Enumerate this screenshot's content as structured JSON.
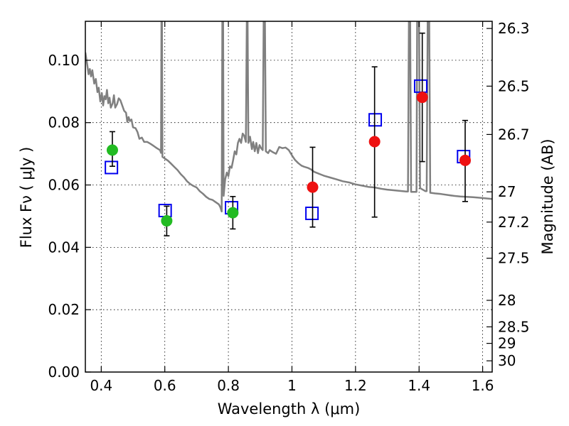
{
  "chart_data": {
    "type": "scatter",
    "xlabel": "Wavelength  λ (μm)",
    "ylabel": "Flux  Fν  ( μJy )",
    "y2label": "Magnitude (AB)",
    "xlim": [
      0.35,
      1.63
    ],
    "ylim": [
      0.0,
      0.1125
    ],
    "x_ticks": [
      0.4,
      0.6,
      0.8,
      1.0,
      1.2,
      1.4,
      1.6
    ],
    "x_tick_labels": [
      "0.4",
      "0.6",
      "0.8",
      "1",
      "1.2",
      "1.4",
      "1.6"
    ],
    "y_ticks": [
      0.0,
      0.02,
      0.04,
      0.06,
      0.08,
      0.1
    ],
    "y_tick_labels": [
      "0.00",
      "0.02",
      "0.04",
      "0.06",
      "0.08",
      "0.10"
    ],
    "y2_ticks": [
      {
        "label": "26.3",
        "flux": 0.1102
      },
      {
        "label": "26.5",
        "flux": 0.0917
      },
      {
        "label": "26.7",
        "flux": 0.0762
      },
      {
        "label": "27",
        "flux": 0.0578
      },
      {
        "label": "27.2",
        "flux": 0.0481
      },
      {
        "label": "27.5",
        "flux": 0.0365
      },
      {
        "label": "28",
        "flux": 0.023
      },
      {
        "label": "28.5",
        "flux": 0.0145
      },
      {
        "label": "29",
        "flux": 0.0092
      },
      {
        "label": "30",
        "flux": 0.0036
      }
    ],
    "grid": true,
    "series": [
      {
        "marker": "circle",
        "color": "#22bb22",
        "points": [
          {
            "x": 0.435,
            "y": 0.0712,
            "yerr_low": 0.066,
            "yerr_high": 0.0771
          },
          {
            "x": 0.606,
            "y": 0.0485,
            "yerr_low": 0.0437,
            "yerr_high": 0.0532
          },
          {
            "x": 0.814,
            "y": 0.0511,
            "yerr_low": 0.0459,
            "yerr_high": 0.0563
          }
        ]
      },
      {
        "marker": "circle",
        "color": "#ee1111",
        "points": [
          {
            "x": 1.065,
            "y": 0.0593,
            "yerr_low": 0.0465,
            "yerr_high": 0.0721
          },
          {
            "x": 1.26,
            "y": 0.0739,
            "yerr_low": 0.0497,
            "yerr_high": 0.0979
          },
          {
            "x": 1.41,
            "y": 0.0881,
            "yerr_low": 0.0675,
            "yerr_high": 0.1087
          },
          {
            "x": 1.545,
            "y": 0.0679,
            "yerr_low": 0.0547,
            "yerr_high": 0.0807
          }
        ]
      },
      {
        "marker": "square",
        "color": "#0000ee",
        "points": [
          {
            "x": 0.432,
            "y": 0.0656
          },
          {
            "x": 0.601,
            "y": 0.0518
          },
          {
            "x": 0.81,
            "y": 0.0527
          },
          {
            "x": 1.063,
            "y": 0.0509
          },
          {
            "x": 1.262,
            "y": 0.0809
          },
          {
            "x": 1.405,
            "y": 0.0917
          },
          {
            "x": 1.54,
            "y": 0.0691
          }
        ]
      },
      {
        "type": "line",
        "color": "#808080",
        "points": [
          [
            0.35,
            0.1025
          ],
          [
            0.356,
            0.0985
          ],
          [
            0.36,
            0.0955
          ],
          [
            0.364,
            0.0972
          ],
          [
            0.368,
            0.0948
          ],
          [
            0.372,
            0.0968
          ],
          [
            0.378,
            0.0925
          ],
          [
            0.383,
            0.094
          ],
          [
            0.388,
            0.0898
          ],
          [
            0.392,
            0.0912
          ],
          [
            0.397,
            0.0868
          ],
          [
            0.402,
            0.0895
          ],
          [
            0.406,
            0.0855
          ],
          [
            0.41,
            0.0885
          ],
          [
            0.414,
            0.0875
          ],
          [
            0.418,
            0.0905
          ],
          [
            0.422,
            0.0862
          ],
          [
            0.426,
            0.088
          ],
          [
            0.43,
            0.0848
          ],
          [
            0.436,
            0.0862
          ],
          [
            0.44,
            0.0888
          ],
          [
            0.444,
            0.0848
          ],
          [
            0.45,
            0.086
          ],
          [
            0.455,
            0.0878
          ],
          [
            0.46,
            0.0872
          ],
          [
            0.465,
            0.0858
          ],
          [
            0.472,
            0.0838
          ],
          [
            0.478,
            0.0832
          ],
          [
            0.482,
            0.0802
          ],
          [
            0.486,
            0.0818
          ],
          [
            0.49,
            0.0805
          ],
          [
            0.495,
            0.081
          ],
          [
            0.5,
            0.0785
          ],
          [
            0.508,
            0.0782
          ],
          [
            0.514,
            0.077
          ],
          [
            0.52,
            0.0748
          ],
          [
            0.528,
            0.0752
          ],
          [
            0.535,
            0.0738
          ],
          [
            0.545,
            0.0738
          ],
          [
            0.555,
            0.0732
          ],
          [
            0.565,
            0.0725
          ],
          [
            0.575,
            0.0718
          ],
          [
            0.585,
            0.0712
          ],
          [
            0.588,
            0.0703
          ],
          [
            0.5895,
            0.1125
          ],
          [
            0.591,
            0.1125
          ],
          [
            0.5925,
            0.069
          ],
          [
            0.6,
            0.0685
          ],
          [
            0.61,
            0.0678
          ],
          [
            0.62,
            0.0668
          ],
          [
            0.63,
            0.0658
          ],
          [
            0.64,
            0.0648
          ],
          [
            0.65,
            0.0635
          ],
          [
            0.66,
            0.0625
          ],
          [
            0.67,
            0.0612
          ],
          [
            0.68,
            0.0603
          ],
          [
            0.69,
            0.0597
          ],
          [
            0.7,
            0.0592
          ],
          [
            0.71,
            0.058
          ],
          [
            0.72,
            0.0572
          ],
          [
            0.73,
            0.0562
          ],
          [
            0.74,
            0.0555
          ],
          [
            0.75,
            0.0552
          ],
          [
            0.76,
            0.0545
          ],
          [
            0.77,
            0.0538
          ],
          [
            0.775,
            0.0528
          ],
          [
            0.779,
            0.0515
          ],
          [
            0.781,
            0.1125
          ],
          [
            0.7835,
            0.1125
          ],
          [
            0.785,
            0.0565
          ],
          [
            0.79,
            0.0618
          ],
          [
            0.795,
            0.064
          ],
          [
            0.8,
            0.0628
          ],
          [
            0.805,
            0.066
          ],
          [
            0.81,
            0.0655
          ],
          [
            0.815,
            0.068
          ],
          [
            0.82,
            0.0708
          ],
          [
            0.825,
            0.0698
          ],
          [
            0.83,
            0.0735
          ],
          [
            0.835,
            0.0748
          ],
          [
            0.84,
            0.0735
          ],
          [
            0.845,
            0.0765
          ],
          [
            0.85,
            0.0758
          ],
          [
            0.855,
            0.0738
          ],
          [
            0.858,
            0.1125
          ],
          [
            0.8605,
            0.1125
          ],
          [
            0.863,
            0.0735
          ],
          [
            0.868,
            0.0755
          ],
          [
            0.874,
            0.0715
          ],
          [
            0.878,
            0.0738
          ],
          [
            0.883,
            0.0708
          ],
          [
            0.888,
            0.0735
          ],
          [
            0.893,
            0.0702
          ],
          [
            0.898,
            0.0728
          ],
          [
            0.903,
            0.0718
          ],
          [
            0.908,
            0.0712
          ],
          [
            0.911,
            0.1125
          ],
          [
            0.915,
            0.1125
          ],
          [
            0.918,
            0.0708
          ],
          [
            0.925,
            0.0702
          ],
          [
            0.93,
            0.0712
          ],
          [
            0.94,
            0.0705
          ],
          [
            0.95,
            0.07
          ],
          [
            0.96,
            0.0722
          ],
          [
            0.97,
            0.0718
          ],
          [
            0.98,
            0.072
          ],
          [
            0.99,
            0.0712
          ],
          [
            1.0,
            0.0695
          ],
          [
            1.01,
            0.068
          ],
          [
            1.02,
            0.067
          ],
          [
            1.03,
            0.0662
          ],
          [
            1.04,
            0.0658
          ],
          [
            1.05,
            0.0655
          ],
          [
            1.06,
            0.065
          ],
          [
            1.07,
            0.0642
          ],
          [
            1.08,
            0.0638
          ],
          [
            1.09,
            0.0634
          ],
          [
            1.1,
            0.063
          ],
          [
            1.12,
            0.0624
          ],
          [
            1.14,
            0.0618
          ],
          [
            1.16,
            0.0612
          ],
          [
            1.18,
            0.0608
          ],
          [
            1.2,
            0.0602
          ],
          [
            1.22,
            0.0598
          ],
          [
            1.24,
            0.0594
          ],
          [
            1.26,
            0.0592
          ],
          [
            1.28,
            0.0588
          ],
          [
            1.3,
            0.0585
          ],
          [
            1.32,
            0.0583
          ],
          [
            1.34,
            0.0581
          ],
          [
            1.36,
            0.0579
          ],
          [
            1.365,
            0.0579
          ],
          [
            1.368,
            0.1125
          ],
          [
            1.372,
            0.1125
          ],
          [
            1.375,
            0.0578
          ],
          [
            1.392,
            0.0578
          ],
          [
            1.394,
            0.1125
          ],
          [
            1.4,
            0.1125
          ],
          [
            1.403,
            0.059
          ],
          [
            1.42,
            0.058
          ],
          [
            1.424,
            0.058
          ],
          [
            1.427,
            0.1125
          ],
          [
            1.432,
            0.1125
          ],
          [
            1.435,
            0.0575
          ],
          [
            1.45,
            0.0573
          ],
          [
            1.47,
            0.0571
          ],
          [
            1.49,
            0.0568
          ],
          [
            1.51,
            0.0565
          ],
          [
            1.53,
            0.0563
          ],
          [
            1.55,
            0.0562
          ],
          [
            1.57,
            0.0561
          ],
          [
            1.59,
            0.0559
          ],
          [
            1.61,
            0.0557
          ],
          [
            1.63,
            0.0555
          ]
        ]
      }
    ]
  }
}
